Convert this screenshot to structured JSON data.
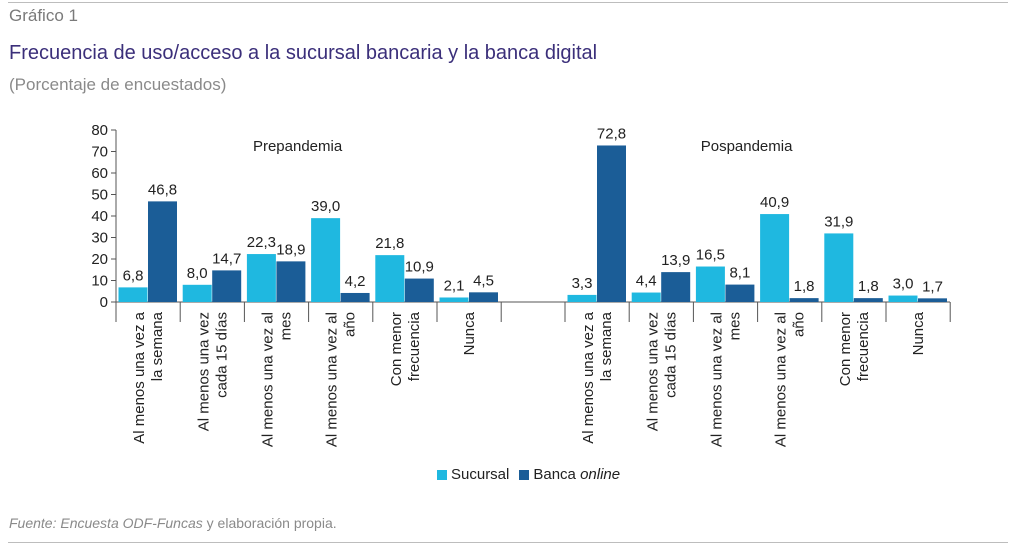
{
  "header": {
    "figure_label": "Gráfico 1",
    "title": "Frecuencia de uso/acceso a la sucursal bancaria y la banca digital",
    "subtitle": "(Porcentaje de encuestados)"
  },
  "footer": {
    "source_italic": "Fuente: Encuesta ODF-Funcas",
    "source_rest": " y elaboración propia."
  },
  "colors": {
    "sucursal": "#1fb8e0",
    "banca": "#1b5d97",
    "axis": "#555555"
  },
  "chart_data": {
    "type": "bar",
    "ylim": [
      0,
      80
    ],
    "yticks": [
      "0",
      "10",
      "20",
      "30",
      "40",
      "50",
      "60",
      "70",
      "80"
    ],
    "legend": {
      "placement": "bottom-center",
      "sucursal": "Sucursal",
      "banca_prefix": "Banca ",
      "banca_italic": "online"
    },
    "panels": [
      {
        "name": "Prepandemia",
        "categories": [
          [
            "Al menos una vez a",
            "la semana"
          ],
          [
            "Al menos una vez",
            "cada 15 días"
          ],
          [
            "Al menos una vez al",
            "mes"
          ],
          [
            "Al menos una vez al",
            "año"
          ],
          [
            "Con menor",
            "frecuencia"
          ],
          [
            "Nunca"
          ]
        ],
        "series": [
          {
            "name": "Sucursal",
            "values": [
              6.8,
              8.0,
              22.3,
              39.0,
              21.8,
              2.1
            ],
            "labels": [
              "6,8",
              "8,0",
              "22,3",
              "39,0",
              "21,8",
              "2,1"
            ]
          },
          {
            "name": "Banca online",
            "values": [
              46.8,
              14.7,
              18.9,
              4.2,
              10.9,
              4.5
            ],
            "labels": [
              "46,8",
              "14,7",
              "18,9",
              "4,2",
              "10,9",
              "4,5"
            ]
          }
        ]
      },
      {
        "name": "Pospandemia",
        "categories": [
          [
            "Al menos una vez a",
            "la semana"
          ],
          [
            "Al menos una vez",
            "cada 15 días"
          ],
          [
            "Al menos una vez al",
            "mes"
          ],
          [
            "Al menos una vez al",
            "año"
          ],
          [
            "Con menor",
            "frecuencia"
          ],
          [
            "Nunca"
          ]
        ],
        "series": [
          {
            "name": "Sucursal",
            "values": [
              3.3,
              4.4,
              16.5,
              40.9,
              31.9,
              3.0
            ],
            "labels": [
              "3,3",
              "4,4",
              "16,5",
              "40,9",
              "31,9",
              "3,0"
            ]
          },
          {
            "name": "Banca online",
            "values": [
              72.8,
              13.9,
              8.1,
              1.8,
              1.8,
              1.7
            ],
            "labels": [
              "72,8",
              "13,9",
              "8,1",
              "1,8",
              "1,8",
              "1,7"
            ]
          }
        ]
      }
    ]
  }
}
